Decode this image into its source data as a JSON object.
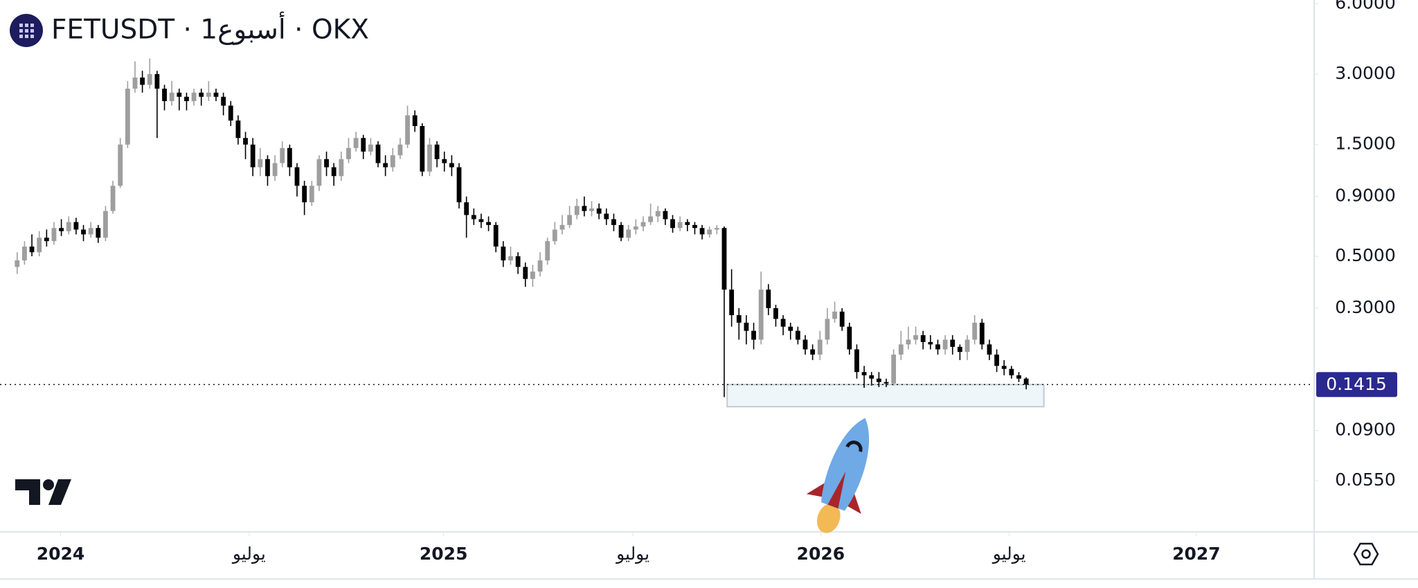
{
  "chart_data": {
    "type": "candlestick",
    "title": "FETUSDT · 1أسبوع · OKX",
    "up_color": "#9e9e9e",
    "down_color": "#000000",
    "log_scale": true,
    "ylim": [
      0.0332,
      6.22
    ],
    "yticks": [
      {
        "value": 6,
        "label": "6.0000"
      },
      {
        "value": 3,
        "label": "3.0000"
      },
      {
        "value": 1.5,
        "label": "1.5000"
      },
      {
        "value": 0.9,
        "label": "0.9000"
      },
      {
        "value": 0.5,
        "label": "0.5000"
      },
      {
        "value": 0.3,
        "label": "0.3000"
      },
      {
        "value": 0.09,
        "label": "0.0900"
      },
      {
        "value": 0.055,
        "label": "0.0550"
      }
    ],
    "xlim": [
      -2.33,
      176
    ],
    "xticks": [
      {
        "value": 5.9,
        "label": "2024"
      },
      {
        "value": 31.5,
        "label": "يوليو"
      },
      {
        "value": 57.9,
        "label": "2025"
      },
      {
        "value": 83.6,
        "label": "يوليو"
      },
      {
        "value": 109.1,
        "label": "2026"
      },
      {
        "value": 134.7,
        "label": "يوليو"
      },
      {
        "value": 160.1,
        "label": "2027"
      }
    ],
    "last_price": {
      "value": 0.1415,
      "label": "0.1415",
      "color": "#2a2a8e"
    },
    "zone": {
      "x": [
        96.4,
        139.4
      ],
      "y": [
        0.1138,
        0.1415
      ]
    },
    "open": [
      0.45,
      0.48,
      0.55,
      0.52,
      0.6,
      0.58,
      0.66,
      0.64,
      0.7,
      0.65,
      0.62,
      0.66,
      0.6,
      0.78,
      1.0,
      1.5,
      2.6,
      2.9,
      2.7,
      3.0,
      2.6,
      2.3,
      2.5,
      2.4,
      2.3,
      2.5,
      2.4,
      2.5,
      2.4,
      2.2,
      1.9,
      1.6,
      1.5,
      1.2,
      1.3,
      1.1,
      1.25,
      1.45,
      1.2,
      1.0,
      0.85,
      1.0,
      1.3,
      1.2,
      1.1,
      1.3,
      1.45,
      1.6,
      1.4,
      1.5,
      1.25,
      1.2,
      1.35,
      1.5,
      2.0,
      1.8,
      1.15,
      1.5,
      1.3,
      1.25,
      1.2,
      0.85,
      0.75,
      0.72,
      0.7,
      0.68,
      0.55,
      0.48,
      0.5,
      0.45,
      0.4,
      0.43,
      0.48,
      0.58,
      0.65,
      0.68,
      0.75,
      0.82,
      0.78,
      0.8,
      0.76,
      0.72,
      0.68,
      0.6,
      0.65,
      0.67,
      0.7,
      0.74,
      0.78,
      0.72,
      0.66,
      0.7,
      0.68,
      0.66,
      0.62,
      0.65,
      0.66,
      0.36,
      0.28,
      0.26,
      0.24,
      0.22,
      0.36,
      0.3,
      0.27,
      0.25,
      0.24,
      0.22,
      0.2,
      0.19,
      0.22,
      0.27,
      0.29,
      0.25,
      0.2,
      0.16,
      0.155,
      0.15,
      0.145,
      0.143,
      0.19,
      0.21,
      0.22,
      0.23,
      0.215,
      0.21,
      0.2,
      0.22,
      0.205,
      0.195,
      0.22,
      0.26,
      0.21,
      0.19,
      0.17,
      0.165,
      0.155,
      0.15
    ],
    "high": [
      0.52,
      0.58,
      0.62,
      0.64,
      0.65,
      0.7,
      0.72,
      0.74,
      0.73,
      0.68,
      0.7,
      0.68,
      0.82,
      1.05,
      1.6,
      2.8,
      3.4,
      3.1,
      3.5,
      3.1,
      2.7,
      2.8,
      2.6,
      2.5,
      2.6,
      2.6,
      2.8,
      2.6,
      2.5,
      2.3,
      2.0,
      1.7,
      1.6,
      1.45,
      1.35,
      1.35,
      1.55,
      1.5,
      1.25,
      1.05,
      1.05,
      1.35,
      1.4,
      1.25,
      1.4,
      1.6,
      1.7,
      1.65,
      1.6,
      1.55,
      1.35,
      1.45,
      1.6,
      2.2,
      2.1,
      1.85,
      1.6,
      1.55,
      1.4,
      1.35,
      1.25,
      0.9,
      0.8,
      0.76,
      0.74,
      0.7,
      0.58,
      0.55,
      0.52,
      0.47,
      0.46,
      0.52,
      0.6,
      0.7,
      0.75,
      0.82,
      0.88,
      0.9,
      0.86,
      0.84,
      0.8,
      0.76,
      0.7,
      0.68,
      0.72,
      0.74,
      0.84,
      0.82,
      0.8,
      0.75,
      0.74,
      0.72,
      0.7,
      0.68,
      0.67,
      0.68,
      0.67,
      0.44,
      0.3,
      0.28,
      0.26,
      0.43,
      0.38,
      0.31,
      0.28,
      0.26,
      0.25,
      0.23,
      0.21,
      0.24,
      0.3,
      0.32,
      0.3,
      0.26,
      0.21,
      0.17,
      0.16,
      0.16,
      0.15,
      0.2,
      0.24,
      0.25,
      0.25,
      0.24,
      0.23,
      0.22,
      0.23,
      0.23,
      0.21,
      0.23,
      0.28,
      0.27,
      0.22,
      0.2,
      0.18,
      0.17,
      0.16,
      0.152
    ],
    "low": [
      0.42,
      0.46,
      0.5,
      0.5,
      0.55,
      0.56,
      0.61,
      0.62,
      0.62,
      0.58,
      0.6,
      0.57,
      0.58,
      0.76,
      0.98,
      1.45,
      2.5,
      2.5,
      2.6,
      1.6,
      2.1,
      2.2,
      2.1,
      2.1,
      2.2,
      2.2,
      2.3,
      2.3,
      2.0,
      1.8,
      1.5,
      1.3,
      1.1,
      1.1,
      1.0,
      1.05,
      1.2,
      1.1,
      0.9,
      0.75,
      0.82,
      0.95,
      1.1,
      1.0,
      1.05,
      1.25,
      1.4,
      1.3,
      1.35,
      1.2,
      1.1,
      1.15,
      1.3,
      1.45,
      1.7,
      1.1,
      1.1,
      1.2,
      1.15,
      1.1,
      0.8,
      0.6,
      0.68,
      0.66,
      0.64,
      0.52,
      0.45,
      0.46,
      0.42,
      0.37,
      0.37,
      0.41,
      0.46,
      0.56,
      0.62,
      0.66,
      0.72,
      0.74,
      0.74,
      0.72,
      0.68,
      0.64,
      0.58,
      0.58,
      0.62,
      0.64,
      0.68,
      0.7,
      0.68,
      0.63,
      0.64,
      0.64,
      0.62,
      0.59,
      0.6,
      0.62,
      0.125,
      0.25,
      0.22,
      0.21,
      0.2,
      0.21,
      0.28,
      0.25,
      0.23,
      0.22,
      0.21,
      0.19,
      0.18,
      0.18,
      0.21,
      0.26,
      0.24,
      0.19,
      0.15,
      0.137,
      0.14,
      0.138,
      0.138,
      0.14,
      0.18,
      0.2,
      0.21,
      0.2,
      0.2,
      0.19,
      0.19,
      0.19,
      0.18,
      0.18,
      0.21,
      0.2,
      0.18,
      0.16,
      0.155,
      0.15,
      0.145,
      0.135
    ],
    "close": [
      0.48,
      0.55,
      0.52,
      0.6,
      0.58,
      0.66,
      0.64,
      0.7,
      0.65,
      0.62,
      0.66,
      0.6,
      0.78,
      1.0,
      1.5,
      2.6,
      2.9,
      2.7,
      3.0,
      2.6,
      2.3,
      2.5,
      2.4,
      2.3,
      2.5,
      2.4,
      2.5,
      2.4,
      2.2,
      1.9,
      1.6,
      1.5,
      1.2,
      1.3,
      1.1,
      1.25,
      1.45,
      1.2,
      1.0,
      0.85,
      1.0,
      1.3,
      1.2,
      1.1,
      1.3,
      1.45,
      1.6,
      1.4,
      1.5,
      1.25,
      1.2,
      1.35,
      1.5,
      2.0,
      1.8,
      1.15,
      1.5,
      1.3,
      1.25,
      1.2,
      0.85,
      0.75,
      0.72,
      0.7,
      0.68,
      0.55,
      0.48,
      0.5,
      0.45,
      0.4,
      0.43,
      0.48,
      0.58,
      0.65,
      0.68,
      0.75,
      0.82,
      0.78,
      0.8,
      0.76,
      0.72,
      0.68,
      0.6,
      0.65,
      0.67,
      0.7,
      0.74,
      0.78,
      0.72,
      0.66,
      0.7,
      0.68,
      0.66,
      0.62,
      0.65,
      0.66,
      0.36,
      0.28,
      0.26,
      0.24,
      0.22,
      0.36,
      0.3,
      0.27,
      0.25,
      0.24,
      0.22,
      0.2,
      0.19,
      0.22,
      0.27,
      0.29,
      0.25,
      0.2,
      0.16,
      0.155,
      0.15,
      0.145,
      0.143,
      0.19,
      0.21,
      0.22,
      0.23,
      0.215,
      0.21,
      0.2,
      0.22,
      0.205,
      0.195,
      0.22,
      0.26,
      0.21,
      0.19,
      0.17,
      0.165,
      0.155,
      0.15,
      0.1415
    ]
  }
}
